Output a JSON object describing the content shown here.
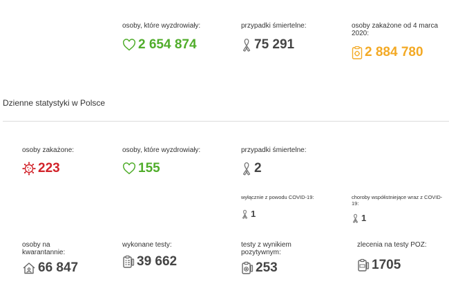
{
  "summary": {
    "recovered": {
      "label": "osoby, które wyzdrowiały:",
      "value": "2 654 874"
    },
    "deaths": {
      "label": "przypadki śmiertelne:",
      "value": "75 291"
    },
    "infected_since": {
      "label": "osoby zakażone od 4 marca 2020:",
      "value": "2 884 780"
    }
  },
  "daily": {
    "section_title": "Dzienne statystyki w Polsce",
    "infected": {
      "label": "osoby zakażone:",
      "value": "223"
    },
    "recovered": {
      "label": "osoby, które wyzdrowiały:",
      "value": "155"
    },
    "deaths": {
      "label": "przypadki śmiertelne:",
      "value": "2"
    },
    "deaths_covid_only": {
      "label": "wyłącznie z powodu COVID-19:",
      "value": "1"
    },
    "deaths_comorbid": {
      "label": "choroby współistniejące wraz z COVID-19:",
      "value": "1"
    },
    "quarantine": {
      "label": "osoby na kwarantannie:",
      "value": "66 847"
    },
    "tests_done": {
      "label": "wykonane testy:",
      "value": "39 662"
    },
    "tests_positive": {
      "label": "testy z wynikiem pozytywnym:",
      "value": "253"
    },
    "poz_orders": {
      "label": "zlecenia na testy POZ:",
      "value": "1705"
    }
  },
  "colors": {
    "green": "#50ad2b",
    "orange": "#f3a924",
    "red": "#d2232a",
    "gray": "#444444"
  },
  "icons": {
    "recovered": "heart-icon",
    "deaths": "ribbon-icon",
    "infected_since": "clipboard-virus-icon",
    "infected": "virus-icon",
    "quarantine": "house-icon",
    "tests": "clipboard-list-icon",
    "positive": "test-tube-icon",
    "poz": "poz-kit-icon"
  }
}
